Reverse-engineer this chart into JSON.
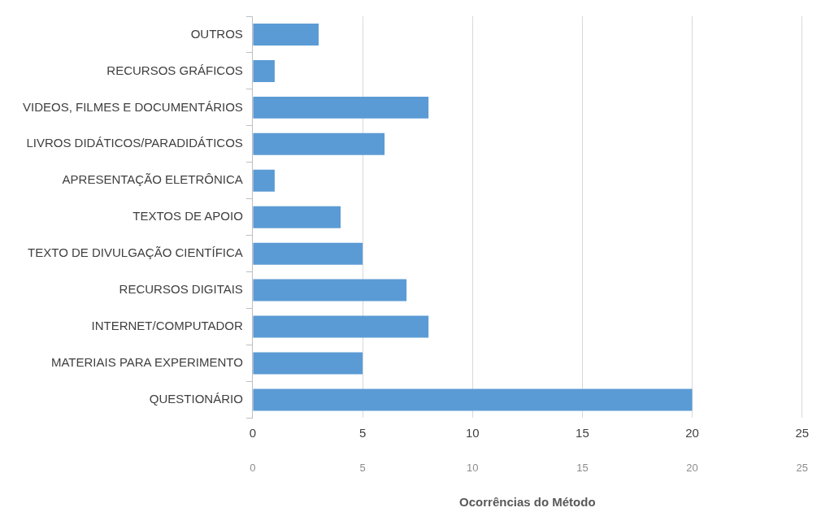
{
  "chart_data": {
    "type": "bar",
    "orientation": "horizontal",
    "categories": [
      "OUTROS",
      "RECURSOS GRÁFICOS",
      "VIDEOS, FILMES E DOCUMENTÁRIOS",
      "LIVROS DIDÁTICOS/PARADIDÁTICOS",
      "APRESENTAÇÃO ELETRÔNICA",
      "TEXTOS DE APOIO",
      "TEXTO DE DIVULGAÇÃO CIENTÍFICA",
      "RECURSOS DIGITAIS",
      "INTERNET/COMPUTADOR",
      "MATERIAIS PARA EXPERIMENTO",
      "QUESTIONÁRIO"
    ],
    "values": [
      3,
      1,
      8,
      6,
      1,
      4,
      5,
      7,
      8,
      5,
      20
    ],
    "color": "#5b9bd5",
    "xlim": [
      0,
      25
    ],
    "xticks": [
      0,
      5,
      10,
      15,
      20,
      25
    ],
    "x2lim": [
      0,
      25
    ],
    "x2ticks": [
      0,
      5,
      10,
      15,
      20,
      25
    ],
    "x2label": "Ocorrências do Método",
    "grid": "x",
    "legend": false
  }
}
